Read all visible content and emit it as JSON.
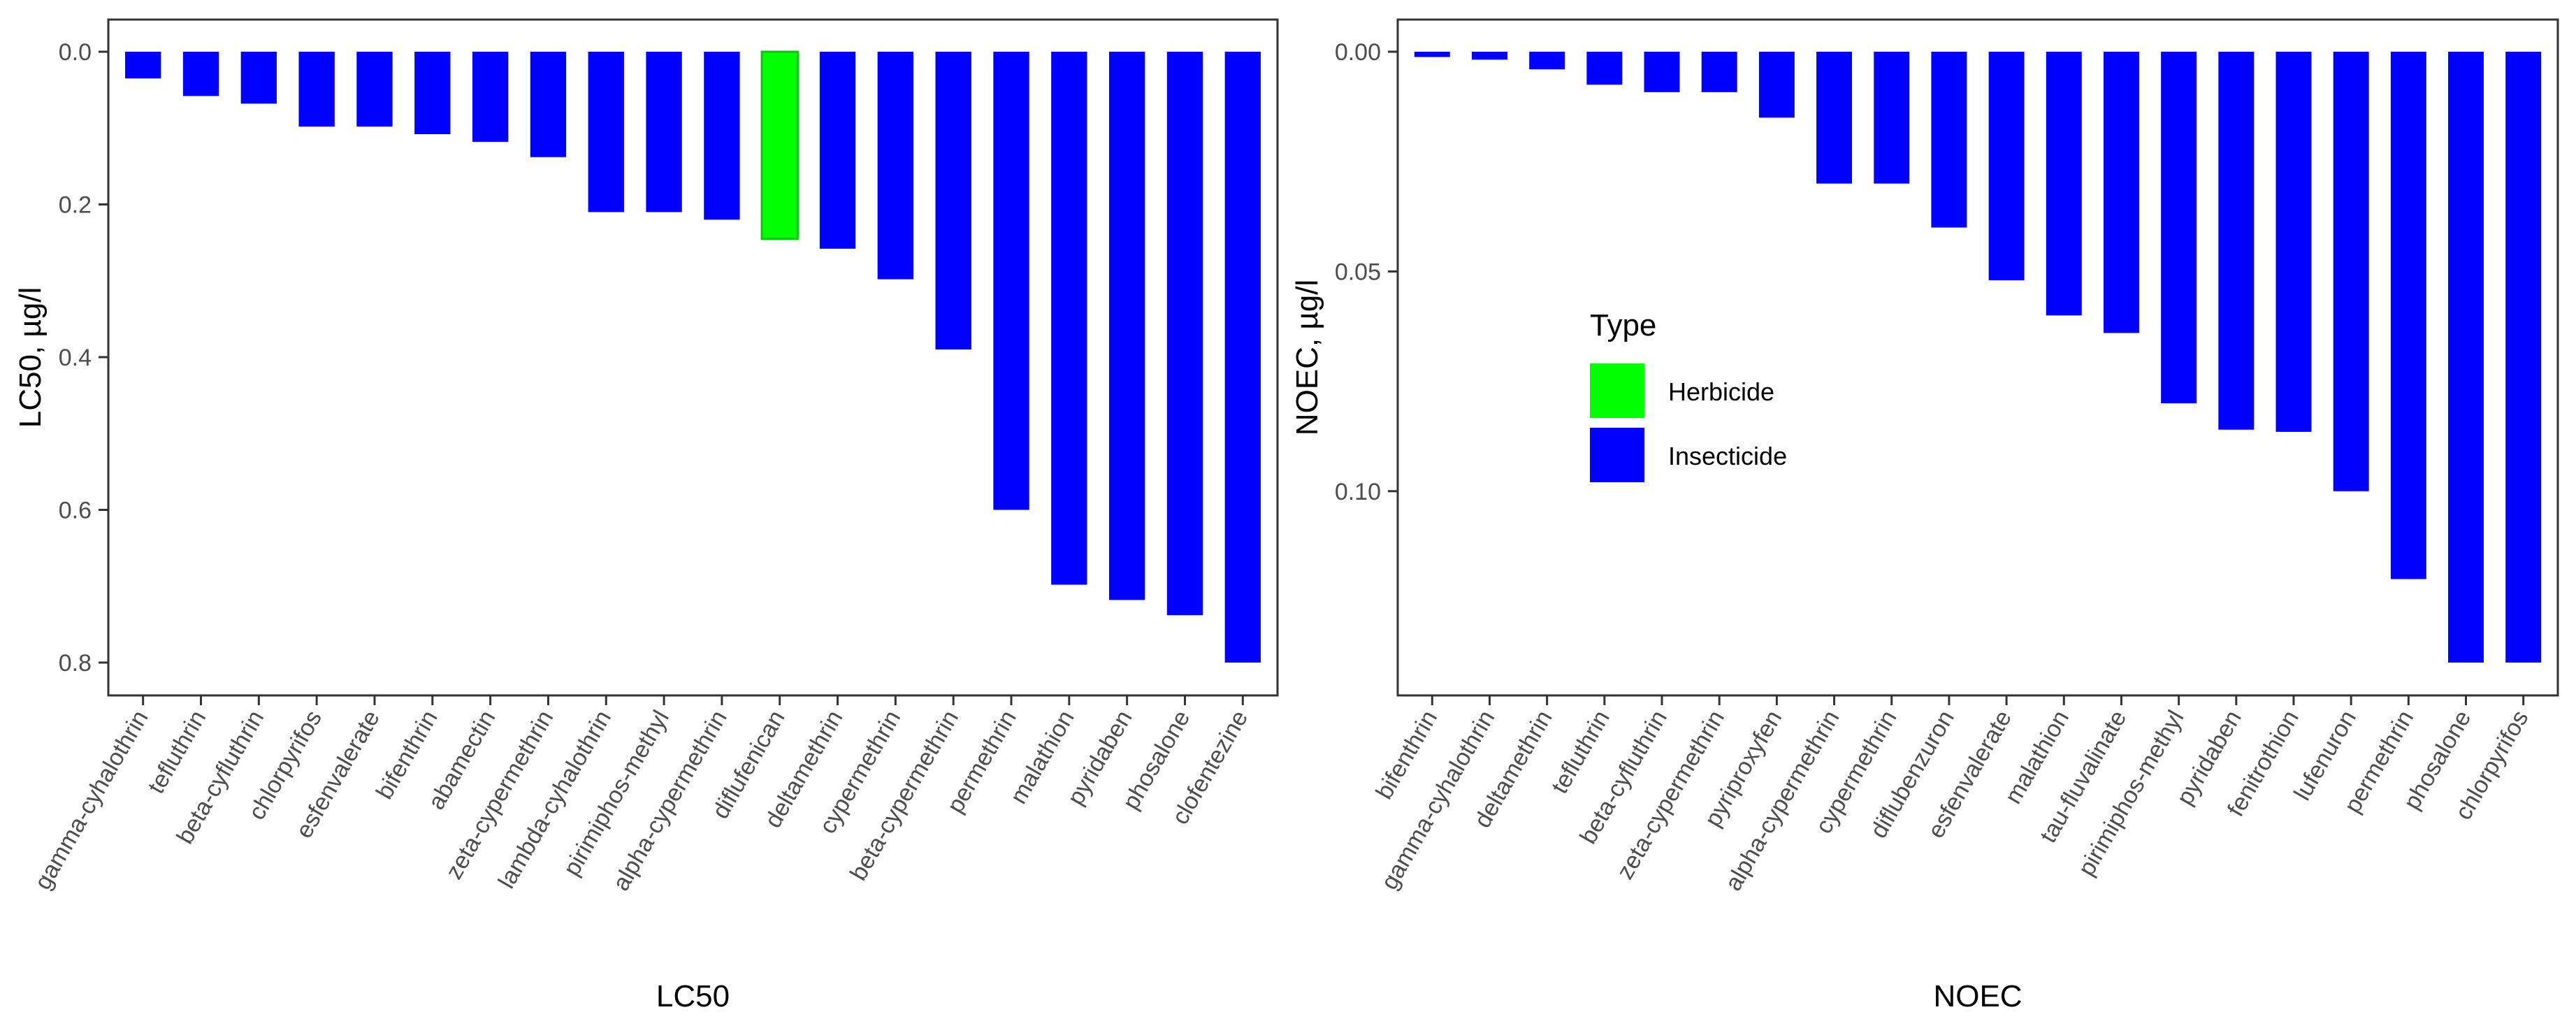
{
  "colors": {
    "Herbicide": "#00ff00",
    "Insecticide": "#0000ff",
    "bar_outline_herbicide": "#00cc00"
  },
  "legend": {
    "title": "Type",
    "items": [
      {
        "label": "Herbicide",
        "color": "#00ff00"
      },
      {
        "label": "Insecticide",
        "color": "#0000ff"
      }
    ]
  },
  "chart_data": [
    {
      "type": "bar",
      "orientation": "downward",
      "xlabel": "LC50",
      "ylabel": "LC50, µg/l",
      "ylim": [
        0,
        0.82
      ],
      "yticks": [
        0.0,
        0.2,
        0.4,
        0.6,
        0.8
      ],
      "ytick_labels": [
        "0.0",
        "0.2",
        "0.4",
        "0.6",
        "0.8"
      ],
      "categories": [
        "gamma-cyhalothrin",
        "tefluthrin",
        "beta-cyfluthrin",
        "chlorpyrifos",
        "esfenvalerate",
        "bifenthrin",
        "abamectin",
        "zeta-cypermethrin",
        "lambda-cyhalothrin",
        "pirimiphos-methyl",
        "alpha-cypermethrin",
        "diflufenican",
        "deltamethrin",
        "cypermethrin",
        "beta-cypermethrin",
        "permethrin",
        "malathion",
        "pyridaben",
        "phosalone",
        "clofentezine"
      ],
      "values": [
        0.035,
        0.058,
        0.068,
        0.098,
        0.098,
        0.108,
        0.118,
        0.138,
        0.21,
        0.21,
        0.22,
        0.245,
        0.258,
        0.298,
        0.39,
        0.6,
        0.698,
        0.718,
        0.738,
        0.8
      ],
      "types": [
        "Insecticide",
        "Insecticide",
        "Insecticide",
        "Insecticide",
        "Insecticide",
        "Insecticide",
        "Insecticide",
        "Insecticide",
        "Insecticide",
        "Insecticide",
        "Insecticide",
        "Herbicide",
        "Insecticide",
        "Insecticide",
        "Insecticide",
        "Insecticide",
        "Insecticide",
        "Insecticide",
        "Insecticide",
        "Insecticide"
      ],
      "grid": false
    },
    {
      "type": "bar",
      "orientation": "downward",
      "xlabel": "NOEC",
      "ylabel": "NOEC, µg/l",
      "ylim": [
        0,
        0.147
      ],
      "yticks": [
        0.0,
        0.05,
        0.1
      ],
      "ytick_labels": [
        "0.00",
        "0.05",
        "0.10"
      ],
      "categories": [
        "bifenthrin",
        "gamma-cyhalothrin",
        "deltamethrin",
        "tefluthrin",
        "beta-cyfluthrin",
        "zeta-cypermethrin",
        "pyriproxyfen",
        "alpha-cypermethrin",
        "cypermethrin",
        "diflubenzuron",
        "esfenvalerate",
        "malathion",
        "tau-fluvalinate",
        "pirimiphos-methyl",
        "pyridaben",
        "fenitrothion",
        "lufenuron",
        "permethrin",
        "phosalone",
        "chlorpyrifos"
      ],
      "values": [
        0.0012,
        0.0018,
        0.004,
        0.0075,
        0.0092,
        0.0092,
        0.015,
        0.03,
        0.03,
        0.04,
        0.052,
        0.06,
        0.064,
        0.08,
        0.086,
        0.0865,
        0.1,
        0.12,
        0.139,
        0.139
      ],
      "types": [
        "Insecticide",
        "Insecticide",
        "Insecticide",
        "Insecticide",
        "Insecticide",
        "Insecticide",
        "Insecticide",
        "Insecticide",
        "Insecticide",
        "Insecticide",
        "Insecticide",
        "Insecticide",
        "Insecticide",
        "Insecticide",
        "Insecticide",
        "Insecticide",
        "Insecticide",
        "Insecticide",
        "Insecticide",
        "Insecticide"
      ],
      "grid": false,
      "legend_position": "inside-left"
    }
  ]
}
